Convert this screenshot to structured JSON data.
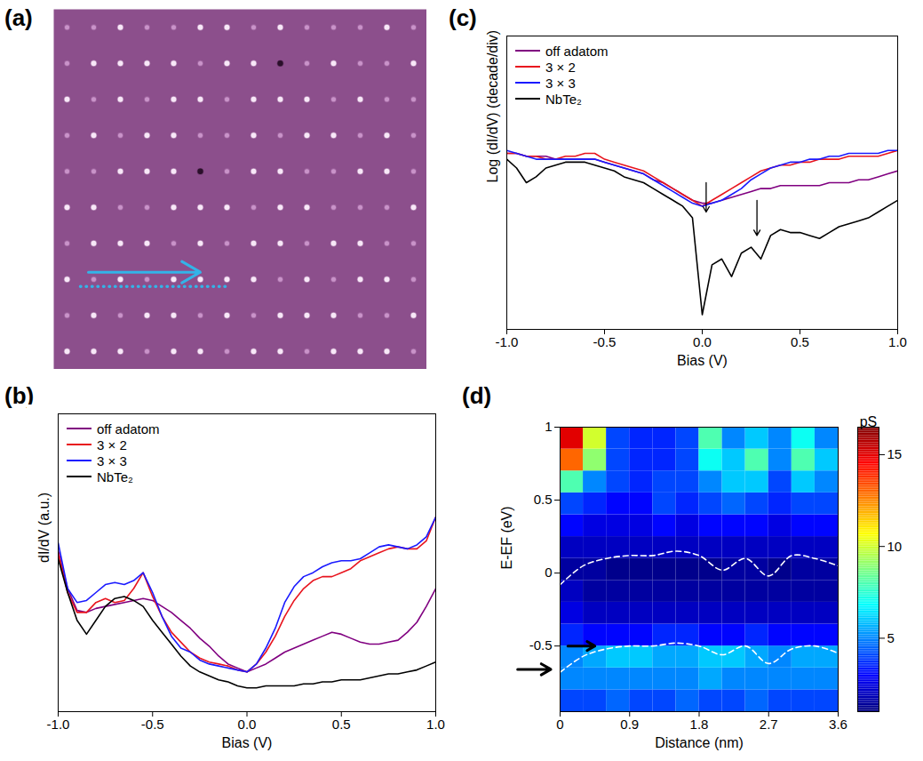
{
  "chart_data": [
    {
      "panel": "(a)",
      "type": "image",
      "tick_labels": false,
      "color": "#8c4f8c",
      "levels": [
        0,
        1,
        2
      ],
      "colors": [
        "#2a0f2a",
        "#c993c9",
        "#f8e8f8"
      ],
      "xlim": [
        0,
        14
      ],
      "ylim": [
        0,
        10
      ],
      "cells": [
        [
          1,
          1,
          2,
          1,
          1,
          2,
          2,
          1,
          2,
          1,
          1,
          1,
          2,
          1
        ],
        [
          1,
          2,
          2,
          2,
          2,
          1,
          2,
          2,
          0,
          1,
          2,
          1,
          1,
          2
        ],
        [
          2,
          1,
          2,
          1,
          2,
          2,
          1,
          2,
          2,
          2,
          1,
          2,
          1,
          1
        ],
        [
          1,
          2,
          1,
          2,
          2,
          1,
          1,
          2,
          1,
          2,
          2,
          1,
          2,
          1
        ],
        [
          1,
          1,
          2,
          2,
          2,
          0,
          1,
          2,
          2,
          1,
          1,
          2,
          2,
          1
        ],
        [
          2,
          2,
          1,
          1,
          2,
          2,
          2,
          1,
          2,
          2,
          1,
          1,
          1,
          2
        ],
        [
          1,
          2,
          2,
          2,
          1,
          2,
          1,
          2,
          2,
          1,
          2,
          2,
          1,
          1
        ],
        [
          2,
          1,
          2,
          1,
          2,
          2,
          2,
          2,
          1,
          2,
          1,
          2,
          2,
          1
        ],
        [
          1,
          2,
          1,
          2,
          2,
          1,
          2,
          1,
          2,
          2,
          2,
          1,
          1,
          2
        ],
        [
          2,
          2,
          2,
          1,
          2,
          2,
          1,
          2,
          2,
          1,
          2,
          2,
          2,
          1
        ]
      ],
      "line_cut": {
        "x": [
          1,
          6.6
        ],
        "y": [
          7.7,
          7.7
        ],
        "color": "#33b4e8",
        "line_style": "dotted"
      },
      "arrow": {
        "x": [
          1.3,
          5.5
        ],
        "y": [
          7.3,
          7.3
        ],
        "color": "#33b4e8"
      }
    },
    {
      "panel": "(c)",
      "type": "line",
      "tick_labels": "x",
      "legend": "top-left",
      "xlabel": "Bias (V)",
      "ylabel": "Log (dI/dV) (decade/div)",
      "xlim": [
        -1,
        1
      ],
      "xticks": [
        {
          "value": -1,
          "label": "-1.0"
        },
        {
          "value": -0.5,
          "label": "-0.5"
        },
        {
          "value": 0,
          "label": "0.0"
        },
        {
          "value": 0.5,
          "label": "0.5"
        },
        {
          "value": 1,
          "label": "1.0"
        }
      ],
      "ylim": [
        0,
        1
      ],
      "x": [
        -1,
        -0.95,
        -0.9,
        -0.85,
        -0.8,
        -0.75,
        -0.7,
        -0.65,
        -0.6,
        -0.55,
        -0.5,
        -0.45,
        -0.4,
        -0.35,
        -0.3,
        -0.25,
        -0.2,
        -0.15,
        -0.1,
        -0.05,
        0,
        0.05,
        0.1,
        0.15,
        0.2,
        0.25,
        0.3,
        0.35,
        0.4,
        0.45,
        0.5,
        0.55,
        0.6,
        0.65,
        0.7,
        0.75,
        0.8,
        0.85,
        0.9,
        0.95,
        1
      ],
      "series": [
        {
          "name": "off adatom",
          "color": "#800080",
          "values": [
            0.6,
            0.6,
            0.59,
            0.59,
            0.59,
            0.58,
            0.58,
            0.58,
            0.58,
            0.58,
            0.57,
            0.56,
            0.55,
            0.54,
            0.53,
            0.51,
            0.5,
            0.48,
            0.46,
            0.44,
            0.43,
            0.43,
            0.44,
            0.45,
            0.46,
            0.47,
            0.48,
            0.48,
            0.49,
            0.49,
            0.49,
            0.49,
            0.49,
            0.5,
            0.5,
            0.5,
            0.51,
            0.51,
            0.52,
            0.53,
            0.54
          ]
        },
        {
          "name": "3 × 2",
          "color": "#e8141e",
          "values": [
            0.6,
            0.6,
            0.59,
            0.59,
            0.58,
            0.58,
            0.59,
            0.59,
            0.6,
            0.6,
            0.58,
            0.57,
            0.56,
            0.55,
            0.54,
            0.52,
            0.5,
            0.48,
            0.46,
            0.44,
            0.42,
            0.44,
            0.46,
            0.48,
            0.5,
            0.52,
            0.54,
            0.55,
            0.56,
            0.56,
            0.57,
            0.57,
            0.58,
            0.58,
            0.58,
            0.59,
            0.59,
            0.59,
            0.59,
            0.6,
            0.61
          ]
        },
        {
          "name": "3 × 3",
          "color": "#1a1aff",
          "values": [
            0.61,
            0.6,
            0.59,
            0.58,
            0.58,
            0.58,
            0.58,
            0.58,
            0.58,
            0.58,
            0.57,
            0.56,
            0.55,
            0.54,
            0.53,
            0.51,
            0.49,
            0.47,
            0.45,
            0.43,
            0.42,
            0.43,
            0.44,
            0.46,
            0.48,
            0.51,
            0.53,
            0.55,
            0.56,
            0.57,
            0.57,
            0.58,
            0.58,
            0.59,
            0.59,
            0.6,
            0.6,
            0.6,
            0.6,
            0.61,
            0.61
          ]
        },
        {
          "name": "NbTe₂",
          "color": "#000000",
          "values": [
            0.58,
            0.55,
            0.5,
            0.52,
            0.55,
            0.56,
            0.57,
            0.57,
            0.57,
            0.56,
            0.55,
            0.54,
            0.52,
            0.51,
            0.5,
            0.48,
            0.46,
            0.44,
            0.42,
            0.38,
            0.05,
            0.22,
            0.24,
            0.18,
            0.26,
            0.28,
            0.24,
            0.32,
            0.34,
            0.33,
            0.33,
            0.32,
            0.31,
            0.33,
            0.35,
            0.36,
            0.37,
            0.38,
            0.4,
            0.42,
            0.44
          ]
        }
      ],
      "arrows": [
        {
          "x": 0.02,
          "y1": 0.5,
          "y2": 0.4
        },
        {
          "x": 0.28,
          "y1": 0.44,
          "y2": 0.32
        }
      ]
    },
    {
      "panel": "(b)",
      "type": "line",
      "tick_labels": "x",
      "legend": "top-left",
      "xlabel": "Bias (V)",
      "ylabel": "dI/dV (a.u.)",
      "xlim": [
        -1,
        1
      ],
      "xticks": [
        {
          "value": -1,
          "label": "-1.0"
        },
        {
          "value": -0.5,
          "label": "-0.5"
        },
        {
          "value": 0,
          "label": "0.0"
        },
        {
          "value": 0.5,
          "label": "0.5"
        },
        {
          "value": 1,
          "label": "1.0"
        }
      ],
      "ylim": [
        0,
        1.5
      ],
      "x": [
        -1,
        -0.95,
        -0.9,
        -0.85,
        -0.8,
        -0.75,
        -0.7,
        -0.65,
        -0.6,
        -0.55,
        -0.5,
        -0.45,
        -0.4,
        -0.35,
        -0.3,
        -0.25,
        -0.2,
        -0.15,
        -0.1,
        -0.05,
        0,
        0.05,
        0.1,
        0.15,
        0.2,
        0.25,
        0.3,
        0.35,
        0.4,
        0.45,
        0.5,
        0.55,
        0.6,
        0.65,
        0.7,
        0.75,
        0.8,
        0.85,
        0.9,
        0.95,
        1
      ],
      "series": [
        {
          "name": "off adatom",
          "color": "#800080",
          "values": [
            0.81,
            0.62,
            0.51,
            0.5,
            0.52,
            0.53,
            0.54,
            0.55,
            0.56,
            0.57,
            0.56,
            0.53,
            0.5,
            0.46,
            0.42,
            0.37,
            0.33,
            0.28,
            0.24,
            0.22,
            0.2,
            0.22,
            0.24,
            0.27,
            0.3,
            0.32,
            0.34,
            0.36,
            0.38,
            0.4,
            0.39,
            0.37,
            0.35,
            0.34,
            0.34,
            0.35,
            0.36,
            0.4,
            0.45,
            0.53,
            0.62
          ]
        },
        {
          "name": "3 × 2",
          "color": "#e8141e",
          "values": [
            0.8,
            0.6,
            0.5,
            0.5,
            0.55,
            0.57,
            0.55,
            0.56,
            0.62,
            0.7,
            0.58,
            0.48,
            0.4,
            0.35,
            0.3,
            0.27,
            0.25,
            0.24,
            0.23,
            0.21,
            0.2,
            0.24,
            0.3,
            0.38,
            0.48,
            0.56,
            0.62,
            0.66,
            0.68,
            0.68,
            0.7,
            0.72,
            0.76,
            0.78,
            0.8,
            0.82,
            0.83,
            0.82,
            0.82,
            0.86,
            0.98
          ]
        },
        {
          "name": "3 × 3",
          "color": "#1a1aff",
          "values": [
            0.85,
            0.62,
            0.55,
            0.56,
            0.6,
            0.64,
            0.65,
            0.64,
            0.66,
            0.7,
            0.6,
            0.48,
            0.38,
            0.32,
            0.3,
            0.26,
            0.24,
            0.23,
            0.22,
            0.21,
            0.2,
            0.24,
            0.32,
            0.42,
            0.55,
            0.63,
            0.68,
            0.7,
            0.73,
            0.75,
            0.76,
            0.76,
            0.77,
            0.8,
            0.83,
            0.84,
            0.83,
            0.82,
            0.84,
            0.88,
            0.98
          ]
        },
        {
          "name": "NbTe₂",
          "color": "#000000",
          "values": [
            0.77,
            0.6,
            0.46,
            0.39,
            0.46,
            0.53,
            0.57,
            0.58,
            0.56,
            0.53,
            0.46,
            0.4,
            0.34,
            0.28,
            0.23,
            0.2,
            0.18,
            0.16,
            0.15,
            0.13,
            0.12,
            0.12,
            0.13,
            0.13,
            0.13,
            0.13,
            0.14,
            0.14,
            0.15,
            0.15,
            0.16,
            0.16,
            0.16,
            0.17,
            0.18,
            0.19,
            0.19,
            0.2,
            0.21,
            0.23,
            0.25
          ]
        }
      ]
    },
    {
      "panel": "(d)",
      "type": "heatmap",
      "xlabel": "Distance (nm)",
      "ylabel": "E-EF (eV)",
      "xlim": [
        0,
        3.6
      ],
      "xticks": [
        0,
        0.9,
        1.8,
        2.7,
        3.6
      ],
      "ylim": [
        -0.95,
        1
      ],
      "yticks": [
        -0.5,
        0,
        0.5,
        1
      ],
      "x_edges": [
        0,
        0.3,
        0.6,
        0.9,
        1.2,
        1.5,
        1.8,
        2.1,
        2.4,
        2.7,
        3.0,
        3.3,
        3.6
      ],
      "y_edges": [
        -0.95,
        -0.8,
        -0.65,
        -0.5,
        -0.35,
        -0.2,
        -0.05,
        0.1,
        0.25,
        0.4,
        0.55,
        0.7,
        0.85,
        1
      ],
      "cells": [
        [
          4,
          4,
          4.5,
          4,
          4,
          4.5,
          4,
          4,
          4.5,
          4,
          4,
          4
        ],
        [
          5,
          5,
          5,
          5,
          5,
          5,
          5.5,
          5,
          5,
          5,
          5,
          5
        ],
        [
          5,
          5.5,
          6,
          6,
          5.5,
          5.5,
          6,
          6,
          5.5,
          5,
          5.5,
          5.5
        ],
        [
          3.5,
          3,
          3,
          3,
          3.5,
          3.5,
          3,
          3,
          3.5,
          3,
          3,
          3
        ],
        [
          2.5,
          2,
          2,
          2,
          2,
          2,
          2,
          2,
          2,
          2,
          2,
          2
        ],
        [
          2,
          1.5,
          1.5,
          1.5,
          1.5,
          1.5,
          1.5,
          1.5,
          1.5,
          1.5,
          1.5,
          1.5
        ],
        [
          1.5,
          1.5,
          1.2,
          1.2,
          1.2,
          1.2,
          1.2,
          1.5,
          1.5,
          1.2,
          1.5,
          1.5
        ],
        [
          2,
          2,
          2,
          2,
          2,
          2,
          2,
          2,
          2,
          2,
          2,
          2
        ],
        [
          3,
          2.5,
          2.5,
          2.5,
          3,
          2.5,
          3,
          3,
          3,
          2.5,
          3,
          3
        ],
        [
          4,
          3.5,
          3,
          3,
          4,
          3.5,
          4,
          4.5,
          4,
          3.5,
          4,
          4
        ],
        [
          8,
          5,
          4,
          3.5,
          4,
          4,
          5,
          6,
          6,
          4,
          6,
          5
        ],
        [
          13,
          9,
          4,
          3.5,
          3.5,
          4,
          7,
          6,
          8,
          5,
          8,
          6
        ],
        [
          15,
          10,
          4,
          3.5,
          3.5,
          4,
          8,
          5,
          6,
          5,
          7,
          5
        ]
      ],
      "colorbar": {
        "lim": [
          1,
          16.5
        ],
        "ticks": [
          5,
          10,
          15
        ],
        "label": "pS"
      },
      "line_x": [
        0,
        0.3,
        0.6,
        0.9,
        1.2,
        1.5,
        1.8,
        2.1,
        2.4,
        2.7,
        3.0,
        3.3,
        3.6
      ],
      "lines": [
        {
          "color": "#ffffff",
          "line_style": "dashed",
          "values": [
            -0.08,
            0.05,
            0.1,
            0.12,
            0.12,
            0.15,
            0.12,
            0.02,
            0.1,
            -0.02,
            0.12,
            0.1,
            0.05
          ]
        },
        {
          "color": "#ffffff",
          "line_style": "dashed",
          "values": [
            -0.68,
            -0.57,
            -0.52,
            -0.5,
            -0.5,
            -0.48,
            -0.5,
            -0.56,
            -0.5,
            -0.62,
            -0.52,
            -0.5,
            -0.55
          ]
        }
      ],
      "arrows": [
        {
          "x1": 0.1,
          "x2": 0.45,
          "y": -0.5
        },
        {
          "x1": -0.55,
          "x2": -0.12,
          "y": -0.66
        }
      ]
    }
  ]
}
